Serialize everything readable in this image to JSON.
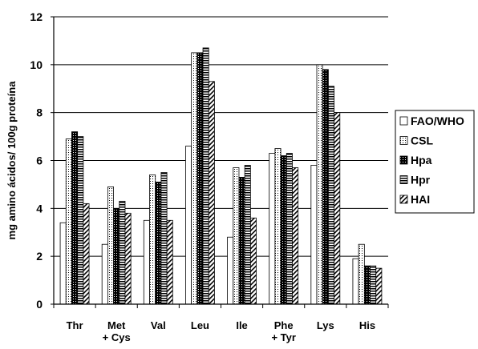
{
  "chart_data": {
    "type": "bar",
    "title": "",
    "xlabel": "",
    "ylabel": "mg amino ácidos/ 100g proteína",
    "ylim": [
      0,
      12
    ],
    "yticks": [
      0,
      2,
      4,
      6,
      8,
      10,
      12
    ],
    "grid": true,
    "legend_position": "right",
    "categories": [
      [
        "Thr"
      ],
      [
        "Met",
        "+ Cys"
      ],
      [
        "Val"
      ],
      [
        "Leu"
      ],
      [
        "Ile"
      ],
      [
        "Phe",
        "+ Tyr"
      ],
      [
        "Lys"
      ],
      [
        "His"
      ]
    ],
    "series": [
      {
        "name": "FAO/WHO",
        "pattern": "plain",
        "values": [
          3.4,
          2.5,
          3.5,
          6.6,
          2.8,
          6.3,
          5.8,
          1.9
        ]
      },
      {
        "name": "CSL",
        "pattern": "dots",
        "values": [
          6.9,
          4.9,
          5.4,
          10.5,
          5.7,
          6.5,
          10.0,
          2.5
        ]
      },
      {
        "name": "Hpa",
        "pattern": "black-dots",
        "values": [
          7.2,
          4.0,
          5.1,
          10.5,
          5.3,
          6.2,
          9.8,
          1.6
        ]
      },
      {
        "name": "Hpr",
        "pattern": "horizontal",
        "values": [
          7.0,
          4.3,
          5.5,
          10.7,
          5.8,
          6.3,
          9.1,
          1.6
        ]
      },
      {
        "name": "HAI",
        "pattern": "diagonal",
        "values": [
          4.2,
          3.8,
          3.5,
          9.3,
          3.6,
          5.7,
          8.0,
          1.5
        ]
      }
    ]
  }
}
